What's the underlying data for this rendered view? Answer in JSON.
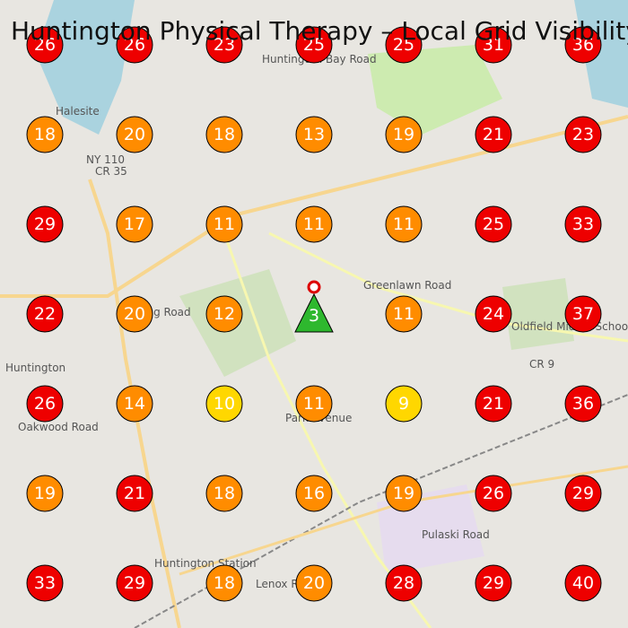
{
  "map": {
    "title": "Huntington Physical Therapy – Local Grid Visibility",
    "grid": [
      [
        26,
        26,
        23,
        25,
        25,
        31,
        36
      ],
      [
        18,
        20,
        18,
        13,
        19,
        21,
        23
      ],
      [
        29,
        17,
        11,
        11,
        11,
        25,
        33
      ],
      [
        22,
        20,
        12,
        {
          "value": 3,
          "marker": "triangle"
        },
        11,
        24,
        37
      ],
      [
        26,
        14,
        10,
        11,
        9,
        21,
        36
      ],
      [
        19,
        21,
        18,
        16,
        19,
        26,
        29
      ],
      [
        33,
        29,
        18,
        20,
        28,
        29,
        40
      ]
    ],
    "color_bands": [
      {
        "max": 3,
        "color": "#2eb82e"
      },
      {
        "max": 10,
        "color": "#ffd700"
      },
      {
        "max": 20,
        "color": "#ff8c00"
      },
      {
        "max": 100,
        "color": "#ee0000"
      }
    ],
    "map_labels": [
      "Halesite",
      "Huntington",
      "Huntington Station",
      "NY 110",
      "CR 35",
      "Park Avenue",
      "Greenlawn Road",
      "Oldfield Middle School",
      "CR 9",
      "Spring Road",
      "Oakwood Road",
      "Huntington Bay Road",
      "Lenox Road",
      "Pulaski Road"
    ]
  }
}
